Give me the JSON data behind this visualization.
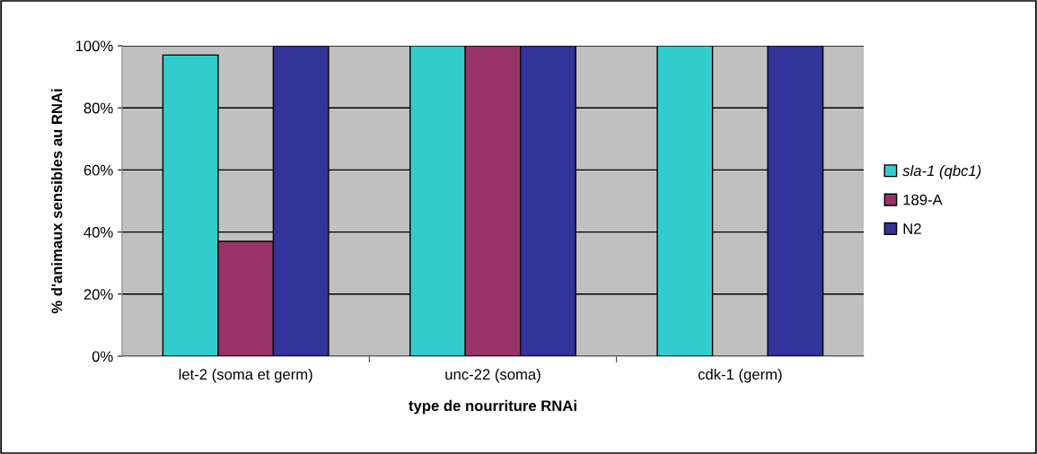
{
  "chart_data": {
    "type": "bar",
    "xlabel": "type de nourriture RNAi",
    "ylabel": "% d'animaux sensibles au RNAi",
    "categories": [
      "let-2 (soma et germ)",
      "unc-22 (soma)",
      "cdk-1 (germ)"
    ],
    "series": [
      {
        "name": "sla-1 (qbc1)",
        "color": "#33cccc",
        "values": [
          97,
          100,
          100
        ]
      },
      {
        "name": "189-A",
        "color": "#993366",
        "values": [
          37,
          100,
          null
        ]
      },
      {
        "name": "N2",
        "color": "#333399",
        "values": [
          100,
          100,
          100
        ]
      }
    ],
    "ylim": [
      0,
      100
    ],
    "yticks": [
      {
        "value": 0,
        "label": "0%"
      },
      {
        "value": 20,
        "label": "20%"
      },
      {
        "value": 40,
        "label": "40%"
      },
      {
        "value": 60,
        "label": "60%"
      },
      {
        "value": 80,
        "label": "80%"
      },
      {
        "value": 100,
        "label": "100%"
      }
    ],
    "grid": "y",
    "legend": "right"
  }
}
